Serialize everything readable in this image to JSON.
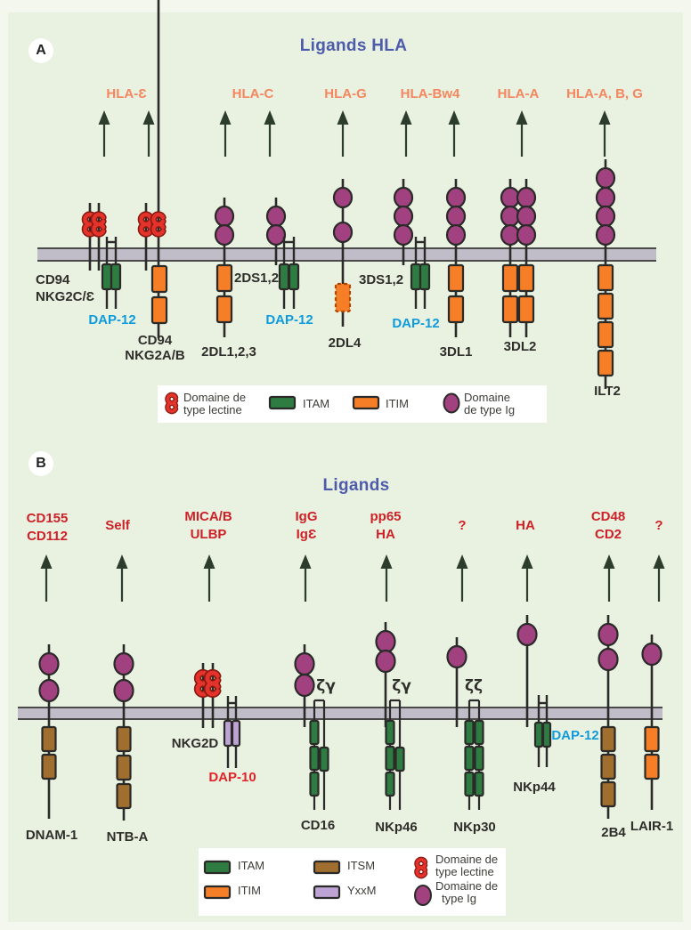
{
  "colors": {
    "background": "#e9f1e1",
    "frame": "#f4f7ee",
    "membrane_fill": "#c0bdc9",
    "membrane_edge": "#4a4a4a",
    "line": "#2a2a28",
    "ig_domain": "#a2417f",
    "itam": "#2e7c41",
    "itim": "#f57e27",
    "itsm": "#a06e2e",
    "yxxm": "#bda4d4",
    "lectin": "#e5332c",
    "lectin_outline": "#871b12",
    "arrow": "#2d3d2d",
    "title": "#4d5bab",
    "hla_label": "#f4875f",
    "ligand_label": "#cd2127",
    "dap12_label": "#0f9bdc",
    "dap10_label": "#e32227",
    "text": "#2e2e2a",
    "legend_bg": "#ffffff"
  },
  "panel_a": {
    "badge": "A",
    "title": "Ligands HLA",
    "ligands": [
      {
        "lines": [
          "HLA-Ɛ"
        ]
      },
      {
        "lines": [
          "HLA-C"
        ]
      },
      {
        "lines": [
          "HLA-G"
        ]
      },
      {
        "lines": [
          "HLA-Bw4"
        ]
      },
      {
        "lines": [
          "HLA-A"
        ]
      },
      {
        "lines": [
          "HLA-A, B, G"
        ]
      }
    ],
    "receptors": [
      {
        "id": "cd94_nkg2c",
        "label_lines": [
          "CD94",
          "NKG2C/Ɛ"
        ],
        "structure": "lectin-dimer",
        "cyto_motifs": [],
        "adapter": {
          "label": "DAP-12",
          "motif": "ITAM"
        }
      },
      {
        "id": "cd94_nkg2a",
        "label_lines": [
          "CD94",
          "NKG2A/B"
        ],
        "structure": "lectin-dimer",
        "cyto_motifs": [
          "ITIM",
          "ITIM"
        ]
      },
      {
        "id": "kir2dl123",
        "label_lines": [
          "2DL1,2,3"
        ],
        "structure": "ig",
        "ig_domains": 2,
        "cyto_motifs": [
          "ITIM",
          "ITIM"
        ]
      },
      {
        "id": "kir2ds12",
        "label_lines": [
          "2DS1,2"
        ],
        "structure": "ig",
        "ig_domains": 2,
        "cyto_motifs": [],
        "adapter": {
          "label": "DAP-12",
          "motif": "ITAM"
        }
      },
      {
        "id": "kir2dl4",
        "label_lines": [
          "2DL4"
        ],
        "structure": "ig",
        "ig_domains": 2,
        "cyto_motifs": [
          "ITIM-atypical"
        ]
      },
      {
        "id": "kir3ds12",
        "label_lines": [
          "3DS1,2"
        ],
        "structure": "ig",
        "ig_domains": 3,
        "cyto_motifs": [],
        "adapter": {
          "label": "DAP-12",
          "motif": "ITAM"
        }
      },
      {
        "id": "kir3dl1",
        "label_lines": [
          "3DL1"
        ],
        "structure": "ig",
        "ig_domains": 3,
        "cyto_motifs": [
          "ITIM",
          "ITIM"
        ]
      },
      {
        "id": "kir3dl2",
        "label_lines": [
          "3DL2"
        ],
        "structure": "ig-dimer",
        "ig_domains": 3,
        "cyto_motifs": [
          "ITIM",
          "ITIM"
        ]
      },
      {
        "id": "ilt2",
        "label_lines": [
          "ILT2"
        ],
        "structure": "ig",
        "ig_domains": 4,
        "cyto_motifs": [
          "ITIM",
          "ITIM",
          "ITIM",
          "ITIM"
        ]
      }
    ],
    "legend": [
      {
        "icon": "lectin",
        "lines": [
          "Domaine de",
          "type lectine"
        ]
      },
      {
        "icon": "ITAM",
        "lines": [
          "ITAM"
        ]
      },
      {
        "icon": "ITIM",
        "lines": [
          "ITIM"
        ]
      },
      {
        "icon": "ig",
        "lines": [
          "Domaine",
          "de type Ig"
        ]
      }
    ]
  },
  "panel_b": {
    "badge": "B",
    "title": "Ligands",
    "ligands": [
      {
        "lines": [
          "CD155",
          "CD112"
        ]
      },
      {
        "lines": [
          "Self"
        ]
      },
      {
        "lines": [
          "MICA/B",
          "ULBP"
        ]
      },
      {
        "lines": [
          "IgG",
          "IgƐ"
        ]
      },
      {
        "lines": [
          "pp65",
          "HA"
        ]
      },
      {
        "lines": [
          "?"
        ]
      },
      {
        "lines": [
          "HA"
        ]
      },
      {
        "lines": [
          "CD48",
          "CD2"
        ]
      },
      {
        "lines": [
          "?"
        ]
      }
    ],
    "receptors": [
      {
        "id": "dnam1",
        "label_lines": [
          "DNAM-1"
        ],
        "structure": "ig",
        "ig_domains": 2,
        "cyto_motifs": [
          "ITSM",
          "ITSM"
        ]
      },
      {
        "id": "ntba",
        "label_lines": [
          "NTB-A"
        ],
        "structure": "ig",
        "ig_domains": 2,
        "cyto_motifs": [
          "ITSM",
          "ITSM",
          "ITSM"
        ]
      },
      {
        "id": "nkg2d",
        "label_lines": [
          "NKG2D"
        ],
        "structure": "lectin-dimer",
        "cyto_motifs": [],
        "adapter": {
          "label": "DAP-10",
          "motif": "YxxM"
        }
      },
      {
        "id": "cd16",
        "label_lines": [
          "CD16"
        ],
        "structure": "ig",
        "ig_domains": 2,
        "chains": {
          "label": "ζγ",
          "left_itam": 3,
          "right_itam": 1
        }
      },
      {
        "id": "nkp46",
        "label_lines": [
          "NKp46"
        ],
        "structure": "ig",
        "ig_domains": 2,
        "chains": {
          "label": "ζγ",
          "left_itam": 3,
          "right_itam": 1
        }
      },
      {
        "id": "nkp30",
        "label_lines": [
          "NKp30"
        ],
        "structure": "ig",
        "ig_domains": 1,
        "chains": {
          "label": "ζζ",
          "left_itam": 3,
          "right_itam": 3
        }
      },
      {
        "id": "nkp44",
        "label_lines": [
          "NKp44"
        ],
        "structure": "ig",
        "ig_domains": 1,
        "cyto_motifs": [],
        "adapter": {
          "label": "DAP-12",
          "motif": "ITAM"
        }
      },
      {
        "id": "b2b4",
        "label_lines": [
          "2B4"
        ],
        "structure": "ig",
        "ig_domains": 2,
        "cyto_motifs": [
          "ITSM",
          "ITSM",
          "ITSM"
        ]
      },
      {
        "id": "lair1",
        "label_lines": [
          "LAIR-1"
        ],
        "structure": "ig",
        "ig_domains": 1,
        "cyto_motifs": [
          "ITIM",
          "ITIM"
        ]
      }
    ],
    "legend": [
      {
        "icon": "ITAM",
        "lines": [
          "ITAM"
        ]
      },
      {
        "icon": "ITSM",
        "lines": [
          "ITSM"
        ]
      },
      {
        "icon": "lectin",
        "lines": [
          "Domaine de",
          "type lectine"
        ]
      },
      {
        "icon": "ITIM",
        "lines": [
          "ITIM"
        ]
      },
      {
        "icon": "YxxM",
        "lines": [
          "YxxM"
        ]
      },
      {
        "icon": "ig",
        "lines": [
          "Domaine de",
          "type Ig"
        ]
      }
    ]
  }
}
